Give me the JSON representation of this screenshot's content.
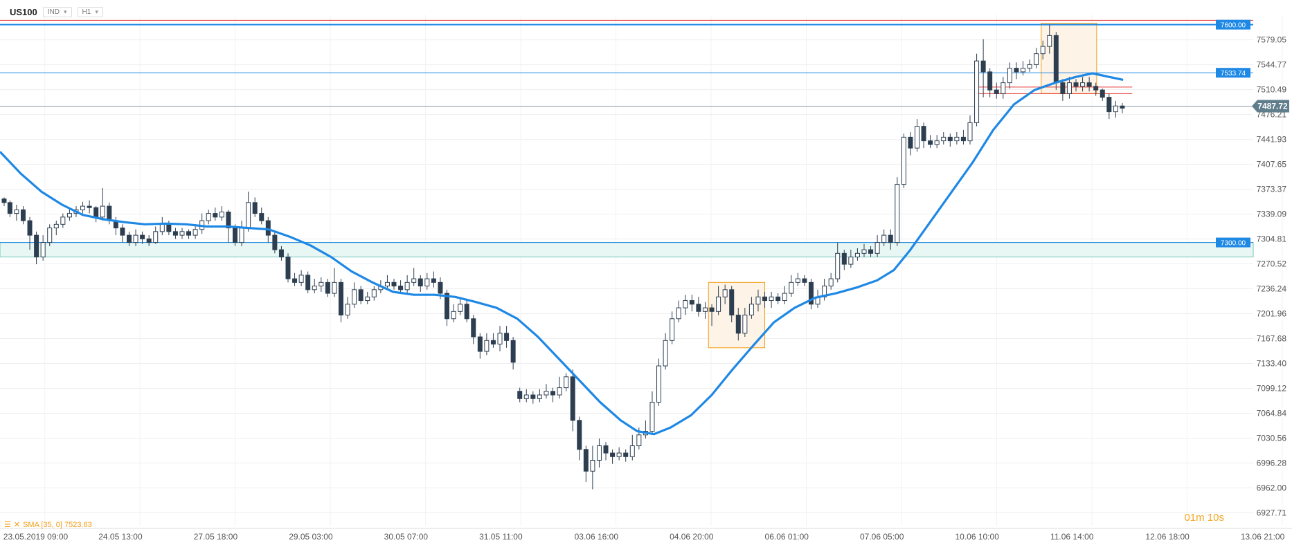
{
  "header": {
    "symbol": "US100",
    "type_label": "IND",
    "timeframe": "H1"
  },
  "indicator": {
    "label": "SMA [35, 0] 7523.63"
  },
  "timer": "01m 10s",
  "colors": {
    "level_blue": "#1e88e5",
    "level_red": "#e53935",
    "sma": "#1e88e5",
    "candle": "#2d3e50",
    "box": "#f39c12",
    "price_tag": "#607d8b"
  },
  "chart_data": {
    "type": "candlestick",
    "ylim": [
      6910,
      7613
    ],
    "y_ticks": [
      "7579.05",
      "7544.77",
      "7510.49",
      "7476.21",
      "7441.93",
      "7407.65",
      "7373.37",
      "7339.09",
      "7304.81",
      "7270.52",
      "7236.24",
      "7201.96",
      "7167.68",
      "7133.40",
      "7099.12",
      "7064.84",
      "7030.56",
      "6996.28",
      "6962.00",
      "6927.71"
    ],
    "x_ticks": [
      "23.05.2019 09:00",
      "24.05 13:00",
      "27.05 18:00",
      "29.05 03:00",
      "30.05 07:00",
      "31.05 11:00",
      "03.06 16:00",
      "04.06 20:00",
      "06.06 01:00",
      "07.06 05:00",
      "10.06 10:00",
      "11.06 14:00",
      "12.06 18:00",
      "13.06 21:00"
    ],
    "levels": [
      {
        "label": "7600.00",
        "value": 7600.0,
        "color": "blue"
      },
      {
        "label": "7533.74",
        "value": 7533.74,
        "color": "blue"
      },
      {
        "label": "7300.00",
        "value": 7300.0,
        "color": "blue"
      }
    ],
    "current_price": "7487.72",
    "sma_series": [
      [
        0,
        7425
      ],
      [
        25,
        7395
      ],
      [
        50,
        7370
      ],
      [
        75,
        7352
      ],
      [
        100,
        7338
      ],
      [
        125,
        7332
      ],
      [
        150,
        7328
      ],
      [
        175,
        7325
      ],
      [
        200,
        7326
      ],
      [
        225,
        7325
      ],
      [
        250,
        7322
      ],
      [
        275,
        7322
      ],
      [
        300,
        7320
      ],
      [
        325,
        7318
      ],
      [
        350,
        7308
      ],
      [
        375,
        7296
      ],
      [
        400,
        7280
      ],
      [
        425,
        7260
      ],
      [
        450,
        7245
      ],
      [
        475,
        7232
      ],
      [
        500,
        7228
      ],
      [
        525,
        7228
      ],
      [
        550,
        7225
      ],
      [
        575,
        7218
      ],
      [
        600,
        7210
      ],
      [
        625,
        7195
      ],
      [
        650,
        7170
      ],
      [
        675,
        7140
      ],
      [
        700,
        7110
      ],
      [
        725,
        7080
      ],
      [
        750,
        7055
      ],
      [
        770,
        7040
      ],
      [
        790,
        7036
      ],
      [
        810,
        7045
      ],
      [
        835,
        7062
      ],
      [
        860,
        7090
      ],
      [
        885,
        7125
      ],
      [
        910,
        7158
      ],
      [
        935,
        7190
      ],
      [
        960,
        7210
      ],
      [
        985,
        7224
      ],
      [
        1010,
        7230
      ],
      [
        1035,
        7238
      ],
      [
        1060,
        7248
      ],
      [
        1080,
        7262
      ],
      [
        1100,
        7290
      ],
      [
        1125,
        7330
      ],
      [
        1150,
        7370
      ],
      [
        1175,
        7410
      ],
      [
        1200,
        7455
      ],
      [
        1225,
        7490
      ],
      [
        1250,
        7510
      ],
      [
        1275,
        7520
      ],
      [
        1300,
        7528
      ],
      [
        1320,
        7533
      ],
      [
        1340,
        7528
      ],
      [
        1357,
        7524
      ]
    ],
    "candles": [
      [
        5,
        7360,
        7355,
        7362,
        7350
      ],
      [
        12,
        7355,
        7340,
        7358,
        7335
      ],
      [
        20,
        7340,
        7345,
        7352,
        7330
      ],
      [
        28,
        7345,
        7330,
        7350,
        7325
      ],
      [
        36,
        7330,
        7310,
        7335,
        7290
      ],
      [
        44,
        7310,
        7280,
        7315,
        7270
      ],
      [
        52,
        7280,
        7300,
        7310,
        7275
      ],
      [
        60,
        7300,
        7320,
        7325,
        7295
      ],
      [
        68,
        7320,
        7325,
        7330,
        7310
      ],
      [
        76,
        7325,
        7335,
        7340,
        7320
      ],
      [
        84,
        7335,
        7340,
        7348,
        7330
      ],
      [
        92,
        7340,
        7345,
        7350,
        7335
      ],
      [
        100,
        7345,
        7350,
        7356,
        7340
      ],
      [
        108,
        7350,
        7348,
        7358,
        7340
      ],
      [
        116,
        7348,
        7335,
        7350,
        7328
      ],
      [
        124,
        7335,
        7350,
        7375,
        7330
      ],
      [
        132,
        7350,
        7330,
        7355,
        7325
      ],
      [
        140,
        7330,
        7320,
        7335,
        7310
      ],
      [
        148,
        7320,
        7310,
        7325,
        7300
      ],
      [
        156,
        7310,
        7300,
        7315,
        7295
      ],
      [
        164,
        7300,
        7310,
        7318,
        7295
      ],
      [
        172,
        7310,
        7305,
        7315,
        7298
      ],
      [
        180,
        7305,
        7300,
        7310,
        7295
      ],
      [
        188,
        7300,
        7315,
        7322,
        7298
      ],
      [
        196,
        7315,
        7325,
        7335,
        7310
      ],
      [
        204,
        7325,
        7315,
        7330,
        7310
      ],
      [
        212,
        7315,
        7310,
        7320,
        7305
      ],
      [
        220,
        7310,
        7315,
        7320,
        7305
      ],
      [
        228,
        7315,
        7310,
        7318,
        7305
      ],
      [
        236,
        7310,
        7318,
        7325,
        7305
      ],
      [
        244,
        7318,
        7330,
        7340,
        7312
      ],
      [
        252,
        7330,
        7340,
        7345,
        7325
      ],
      [
        260,
        7340,
        7335,
        7348,
        7330
      ],
      [
        268,
        7335,
        7342,
        7350,
        7330
      ],
      [
        276,
        7342,
        7320,
        7345,
        7300
      ],
      [
        284,
        7320,
        7300,
        7325,
        7295
      ],
      [
        292,
        7300,
        7320,
        7330,
        7295
      ],
      [
        300,
        7320,
        7355,
        7370,
        7315
      ],
      [
        308,
        7355,
        7340,
        7362,
        7335
      ],
      [
        316,
        7340,
        7330,
        7348,
        7325
      ],
      [
        324,
        7330,
        7310,
        7335,
        7300
      ],
      [
        332,
        7310,
        7290,
        7315,
        7285
      ],
      [
        340,
        7290,
        7280,
        7295,
        7275
      ],
      [
        348,
        7280,
        7250,
        7285,
        7245
      ],
      [
        356,
        7250,
        7245,
        7258,
        7240
      ],
      [
        364,
        7245,
        7255,
        7262,
        7240
      ],
      [
        372,
        7255,
        7235,
        7260,
        7230
      ],
      [
        380,
        7235,
        7240,
        7250,
        7230
      ],
      [
        388,
        7240,
        7245,
        7252,
        7232
      ],
      [
        396,
        7245,
        7230,
        7250,
        7225
      ],
      [
        404,
        7230,
        7245,
        7265,
        7225
      ],
      [
        412,
        7245,
        7200,
        7250,
        7190
      ],
      [
        420,
        7200,
        7215,
        7225,
        7195
      ],
      [
        428,
        7215,
        7235,
        7245,
        7210
      ],
      [
        436,
        7235,
        7220,
        7240,
        7215
      ],
      [
        444,
        7220,
        7225,
        7232,
        7215
      ],
      [
        452,
        7225,
        7235,
        7240,
        7220
      ],
      [
        460,
        7235,
        7240,
        7248,
        7230
      ],
      [
        468,
        7240,
        7245,
        7255,
        7235
      ],
      [
        476,
        7245,
        7240,
        7250,
        7235
      ],
      [
        484,
        7240,
        7235,
        7248,
        7230
      ],
      [
        492,
        7235,
        7245,
        7255,
        7230
      ],
      [
        500,
        7245,
        7250,
        7265,
        7240
      ],
      [
        508,
        7250,
        7240,
        7255,
        7232
      ],
      [
        516,
        7240,
        7250,
        7258,
        7235
      ],
      [
        524,
        7250,
        7245,
        7260,
        7238
      ],
      [
        532,
        7245,
        7230,
        7252,
        7222
      ],
      [
        540,
        7230,
        7195,
        7235,
        7185
      ],
      [
        548,
        7195,
        7205,
        7215,
        7190
      ],
      [
        556,
        7205,
        7215,
        7225,
        7200
      ],
      [
        564,
        7215,
        7195,
        7220,
        7190
      ],
      [
        572,
        7195,
        7170,
        7200,
        7160
      ],
      [
        580,
        7170,
        7150,
        7175,
        7140
      ],
      [
        588,
        7150,
        7165,
        7175,
        7145
      ],
      [
        596,
        7165,
        7160,
        7175,
        7155
      ],
      [
        604,
        7160,
        7175,
        7185,
        7150
      ],
      [
        612,
        7175,
        7165,
        7185,
        7155
      ],
      [
        620,
        7165,
        7135,
        7170,
        7125
      ],
      [
        628,
        7095,
        7085,
        7100,
        7080
      ],
      [
        636,
        7085,
        7090,
        7098,
        7080
      ],
      [
        644,
        7090,
        7085,
        7095,
        7078
      ],
      [
        652,
        7085,
        7090,
        7098,
        7080
      ],
      [
        660,
        7090,
        7095,
        7105,
        7085
      ],
      [
        668,
        7095,
        7090,
        7100,
        7080
      ],
      [
        676,
        7090,
        7100,
        7115,
        7085
      ],
      [
        684,
        7100,
        7115,
        7120,
        7095
      ],
      [
        692,
        7115,
        7055,
        7125,
        7040
      ],
      [
        700,
        7055,
        7015,
        7060,
        7000
      ],
      [
        708,
        7015,
        6985,
        7020,
        6970
      ],
      [
        716,
        6985,
        7000,
        7020,
        6960
      ],
      [
        724,
        7000,
        7020,
        7030,
        6990
      ],
      [
        732,
        7020,
        7010,
        7025,
        7000
      ],
      [
        740,
        7010,
        7005,
        7015,
        6995
      ],
      [
        748,
        7005,
        7010,
        7018,
        7000
      ],
      [
        756,
        7010,
        7005,
        7015,
        6998
      ],
      [
        764,
        7005,
        7020,
        7035,
        7000
      ],
      [
        772,
        7020,
        7035,
        7045,
        7015
      ],
      [
        780,
        7035,
        7040,
        7055,
        7030
      ],
      [
        788,
        7040,
        7080,
        7095,
        7035
      ],
      [
        796,
        7080,
        7130,
        7140,
        7075
      ],
      [
        804,
        7130,
        7165,
        7175,
        7125
      ],
      [
        812,
        7165,
        7195,
        7205,
        7160
      ],
      [
        820,
        7195,
        7210,
        7220,
        7190
      ],
      [
        828,
        7210,
        7220,
        7228,
        7200
      ],
      [
        836,
        7220,
        7215,
        7228,
        7205
      ],
      [
        844,
        7215,
        7205,
        7225,
        7198
      ],
      [
        852,
        7205,
        7210,
        7218,
        7195
      ],
      [
        860,
        7210,
        7205,
        7215,
        7185
      ],
      [
        868,
        7205,
        7225,
        7240,
        7200
      ],
      [
        876,
        7225,
        7235,
        7242,
        7215
      ],
      [
        884,
        7235,
        7200,
        7240,
        7190
      ],
      [
        892,
        7200,
        7175,
        7210,
        7165
      ],
      [
        900,
        7175,
        7200,
        7210,
        7170
      ],
      [
        908,
        7200,
        7215,
        7225,
        7195
      ],
      [
        916,
        7215,
        7225,
        7235,
        7205
      ],
      [
        924,
        7225,
        7220,
        7232,
        7210
      ],
      [
        932,
        7220,
        7225,
        7232,
        7210
      ],
      [
        940,
        7225,
        7220,
        7230,
        7215
      ],
      [
        948,
        7220,
        7230,
        7240,
        7215
      ],
      [
        956,
        7230,
        7245,
        7255,
        7225
      ],
      [
        964,
        7245,
        7250,
        7258,
        7240
      ],
      [
        972,
        7250,
        7245,
        7255,
        7240
      ],
      [
        980,
        7245,
        7215,
        7250,
        7208
      ],
      [
        988,
        7215,
        7225,
        7235,
        7210
      ],
      [
        996,
        7225,
        7240,
        7250,
        7220
      ],
      [
        1004,
        7240,
        7250,
        7258,
        7235
      ],
      [
        1012,
        7250,
        7285,
        7300,
        7245
      ],
      [
        1020,
        7285,
        7270,
        7290,
        7262
      ],
      [
        1028,
        7270,
        7280,
        7290,
        7265
      ],
      [
        1036,
        7280,
        7285,
        7292,
        7275
      ],
      [
        1044,
        7285,
        7290,
        7298,
        7280
      ],
      [
        1052,
        7290,
        7285,
        7295,
        7280
      ],
      [
        1060,
        7285,
        7300,
        7310,
        7280
      ],
      [
        1068,
        7300,
        7310,
        7318,
        7295
      ],
      [
        1076,
        7310,
        7300,
        7318,
        7290
      ],
      [
        1084,
        7300,
        7380,
        7390,
        7295
      ],
      [
        1092,
        7380,
        7445,
        7450,
        7375
      ],
      [
        1100,
        7445,
        7430,
        7452,
        7420
      ],
      [
        1108,
        7430,
        7460,
        7470,
        7425
      ],
      [
        1116,
        7460,
        7440,
        7465,
        7430
      ],
      [
        1124,
        7440,
        7435,
        7448,
        7430
      ],
      [
        1132,
        7435,
        7440,
        7448,
        7430
      ],
      [
        1140,
        7440,
        7445,
        7452,
        7435
      ],
      [
        1148,
        7445,
        7440,
        7450,
        7432
      ],
      [
        1156,
        7440,
        7445,
        7452,
        7435
      ],
      [
        1164,
        7445,
        7440,
        7455,
        7435
      ],
      [
        1172,
        7440,
        7465,
        7475,
        7435
      ],
      [
        1180,
        7465,
        7550,
        7560,
        7460
      ],
      [
        1188,
        7550,
        7535,
        7580,
        7500
      ],
      [
        1196,
        7535,
        7510,
        7540,
        7500
      ],
      [
        1204,
        7510,
        7505,
        7520,
        7498
      ],
      [
        1212,
        7505,
        7520,
        7528,
        7498
      ],
      [
        1220,
        7520,
        7540,
        7548,
        7512
      ],
      [
        1228,
        7540,
        7535,
        7548,
        7525
      ],
      [
        1236,
        7535,
        7540,
        7550,
        7530
      ],
      [
        1244,
        7540,
        7545,
        7552,
        7535
      ],
      [
        1252,
        7545,
        7560,
        7568,
        7540
      ],
      [
        1260,
        7560,
        7570,
        7578,
        7552
      ],
      [
        1268,
        7570,
        7585,
        7600,
        7560
      ],
      [
        1276,
        7585,
        7520,
        7590,
        7510
      ],
      [
        1284,
        7520,
        7505,
        7525,
        7495
      ],
      [
        1292,
        7505,
        7520,
        7528,
        7498
      ],
      [
        1300,
        7520,
        7515,
        7525,
        7508
      ],
      [
        1308,
        7515,
        7520,
        7528,
        7508
      ],
      [
        1316,
        7520,
        7515,
        7528,
        7508
      ],
      [
        1324,
        7515,
        7510,
        7520,
        7502
      ],
      [
        1332,
        7510,
        7500,
        7512,
        7495
      ],
      [
        1340,
        7500,
        7480,
        7505,
        7470
      ],
      [
        1348,
        7480,
        7488,
        7495,
        7472
      ],
      [
        1356,
        7488,
        7485,
        7492,
        7478
      ]
    ],
    "boxes": [
      {
        "x0": 856,
        "x1": 924,
        "y0": 7155,
        "y1": 7245
      },
      {
        "x0": 1258,
        "x1": 1325,
        "y0": 7505,
        "y1": 7602
      }
    ],
    "red_lines": [
      7514,
      7505
    ],
    "teal_band": [
      7280,
      7300
    ]
  }
}
